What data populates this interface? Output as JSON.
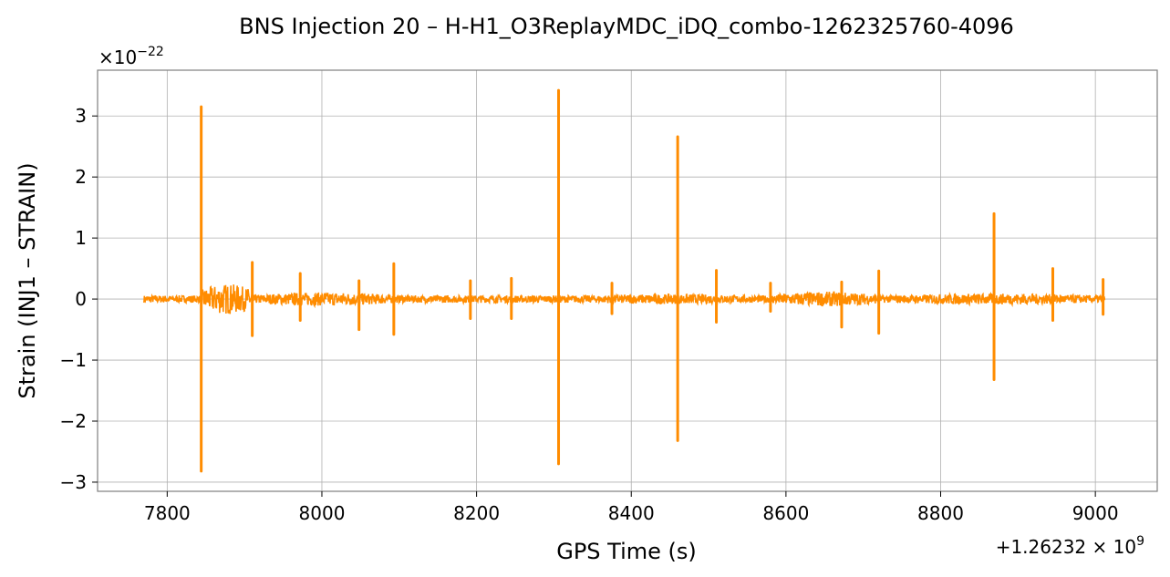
{
  "chart_data": {
    "type": "line",
    "title": "BNS Injection 20 – H-H1_O3ReplayMDC_iDQ_combo-1262325760-4096",
    "xlabel": "GPS Time (s)",
    "ylabel": "Strain (INJ1 – STRAIN)",
    "x_offset_label": "+1.26232 × 10",
    "x_offset_exp": "9",
    "y_scale_label": "×10",
    "y_scale_exp": "−22",
    "xlim": [
      7710,
      9080
    ],
    "ylim": [
      -3.15,
      3.75
    ],
    "xticks": [
      7800,
      8000,
      8200,
      8400,
      8600,
      8800,
      9000
    ],
    "yticks": [
      -3,
      -2,
      -1,
      0,
      1,
      2,
      3
    ],
    "ytick_labels": [
      "−3",
      "−2",
      "−1",
      "0",
      "1",
      "2",
      "3"
    ],
    "grid": true,
    "color": "#ff8c00",
    "x_range": [
      7770,
      9012
    ],
    "baseline_amplitude": 0.06,
    "noise_segments": [
      {
        "x": [
          7845,
          7910
        ],
        "amp": 0.25
      },
      {
        "x": [
          7910,
          8095
        ],
        "amp": 0.11
      },
      {
        "x": [
          8095,
          8320
        ],
        "amp": 0.06
      },
      {
        "x": [
          8320,
          8580
        ],
        "amp": 0.08
      },
      {
        "x": [
          8580,
          8720
        ],
        "amp": 0.12
      },
      {
        "x": [
          8720,
          9012
        ],
        "amp": 0.09
      }
    ],
    "spikes": [
      {
        "x": 7844,
        "max": 3.15,
        "min": -2.82
      },
      {
        "x": 7910,
        "max": 0.6,
        "min": -0.6
      },
      {
        "x": 7972,
        "max": 0.42,
        "min": -0.35
      },
      {
        "x": 8048,
        "max": 0.3,
        "min": -0.5
      },
      {
        "x": 8093,
        "max": 0.58,
        "min": -0.58
      },
      {
        "x": 8192,
        "max": 0.3,
        "min": -0.32
      },
      {
        "x": 8245,
        "max": 0.34,
        "min": -0.32
      },
      {
        "x": 8306,
        "max": 3.42,
        "min": -2.7
      },
      {
        "x": 8375,
        "max": 0.26,
        "min": -0.24
      },
      {
        "x": 8460,
        "max": 2.66,
        "min": -2.32
      },
      {
        "x": 8510,
        "max": 0.47,
        "min": -0.38
      },
      {
        "x": 8580,
        "max": 0.26,
        "min": -0.2
      },
      {
        "x": 8672,
        "max": 0.28,
        "min": -0.46
      },
      {
        "x": 8720,
        "max": 0.46,
        "min": -0.56
      },
      {
        "x": 8869,
        "max": 1.4,
        "min": -1.32
      },
      {
        "x": 8945,
        "max": 0.5,
        "min": -0.35
      },
      {
        "x": 9010,
        "max": 0.32,
        "min": -0.25
      }
    ]
  }
}
